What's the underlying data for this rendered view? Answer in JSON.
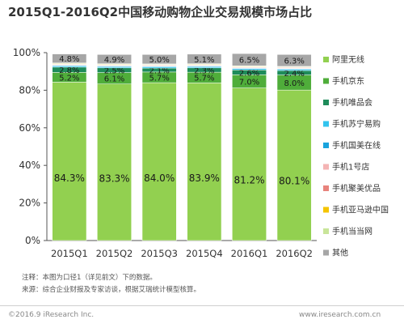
{
  "title": "2015Q1-2016Q2中国移动购物企业交易规模市场占比",
  "notes": {
    "note": "注释：本图为口径1（详见前文）下的数据。",
    "source": "来源：综合企业财报及专家访谈，根据艾瑞统计模型核算。"
  },
  "footer": {
    "copyright": "©2016.9 iResearch Inc.",
    "website": "www.iresearch.com.cn"
  },
  "chart_data": {
    "type": "bar",
    "stacked": true,
    "categories": [
      "2015Q1",
      "2015Q2",
      "2015Q3",
      "2015Q4",
      "2016Q1",
      "2016Q2"
    ],
    "ylim": [
      0,
      100
    ],
    "yticks": [
      "0%",
      "20%",
      "40%",
      "60%",
      "80%",
      "100%"
    ],
    "grid": false,
    "legend_position": "right",
    "series": [
      {
        "name": "阿里无线",
        "color": "#92d050",
        "values": [
          84.3,
          83.3,
          84.0,
          83.9,
          81.2,
          80.1
        ],
        "labels": [
          "84.3%",
          "83.3%",
          "84.0%",
          "83.9%",
          "81.2%",
          "80.1%"
        ]
      },
      {
        "name": "手机京东",
        "color": "#4fad3a",
        "values": [
          5.2,
          6.1,
          5.7,
          5.7,
          7.0,
          8.0
        ],
        "labels": [
          "5.2%",
          "6.1%",
          "5.7%",
          "5.7%",
          "7.0%",
          "8.0%"
        ]
      },
      {
        "name": "手机唯品会",
        "color": "#1e8c5a",
        "values": [
          2.8,
          2.5,
          2.1,
          2.3,
          2.6,
          2.4
        ],
        "labels": [
          "2.8%",
          "2.5%",
          "2.1%",
          "2.3%",
          "2.6%",
          "2.4%"
        ]
      },
      {
        "name": "手机苏宁易购",
        "color": "#33c4ee",
        "values": [
          0.7,
          0.7,
          0.7,
          0.7,
          0.7,
          0.7
        ]
      },
      {
        "name": "手机国美在线",
        "color": "#1aa3dd",
        "values": [
          0.3,
          0.3,
          0.3,
          0.3,
          0.3,
          0.3
        ]
      },
      {
        "name": "手机1号店",
        "color": "#f4b4b4",
        "values": [
          0.3,
          0.3,
          0.3,
          0.3,
          0.3,
          0.3
        ]
      },
      {
        "name": "手机聚美优品",
        "color": "#e8837c",
        "values": [
          0.3,
          0.3,
          0.3,
          0.3,
          0.3,
          0.3
        ]
      },
      {
        "name": "手机亚马逊中国",
        "color": "#f5c400",
        "values": [
          0.3,
          0.3,
          0.3,
          0.3,
          0.3,
          0.3
        ]
      },
      {
        "name": "手机当当网",
        "color": "#c9e59a",
        "values": [
          0.3,
          0.3,
          0.3,
          0.3,
          0.3,
          0.3
        ]
      },
      {
        "name": "其他",
        "color": "#a6a6a6",
        "values": [
          4.8,
          4.9,
          5.0,
          5.1,
          6.5,
          6.3
        ],
        "labels": [
          "4.8%",
          "4.9%",
          "5.0%",
          "5.1%",
          "6.5%",
          "6.3%"
        ]
      }
    ]
  }
}
